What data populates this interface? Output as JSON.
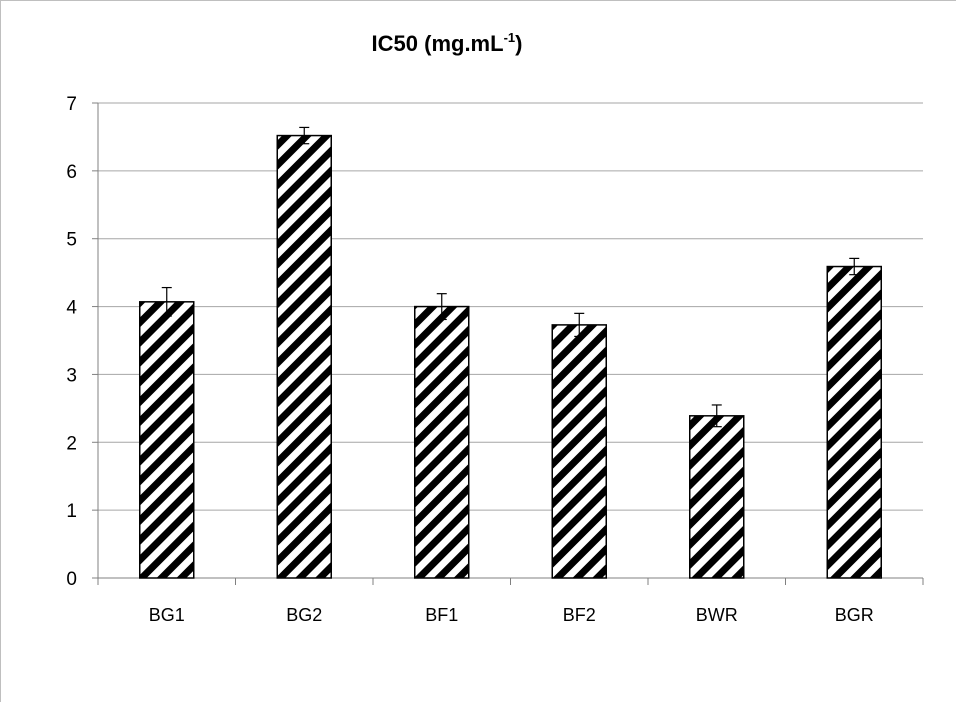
{
  "chart_data": {
    "type": "bar",
    "title": "IC50 (mg.mL",
    "title_superscript": "-1",
    "title_suffix": ")",
    "xlabel": "",
    "ylabel": "",
    "categories": [
      "BG1",
      "BG2",
      "BF1",
      "BF2",
      "BWR",
      "BGR"
    ],
    "values": [
      4.07,
      6.52,
      4.0,
      3.73,
      2.39,
      4.59
    ],
    "error_bars": [
      0.21,
      0.12,
      0.19,
      0.17,
      0.16,
      0.12
    ],
    "ylim": [
      0,
      7
    ],
    "yticks": [
      "0",
      "1",
      "2",
      "3",
      "4",
      "5",
      "6",
      "7"
    ],
    "grid": true,
    "bar_fill": "diagonal-hatch",
    "colors": {
      "bar_stroke": "#000000",
      "hatch": "#000000",
      "grid": "#a6a6a6",
      "axis": "#808080"
    }
  }
}
